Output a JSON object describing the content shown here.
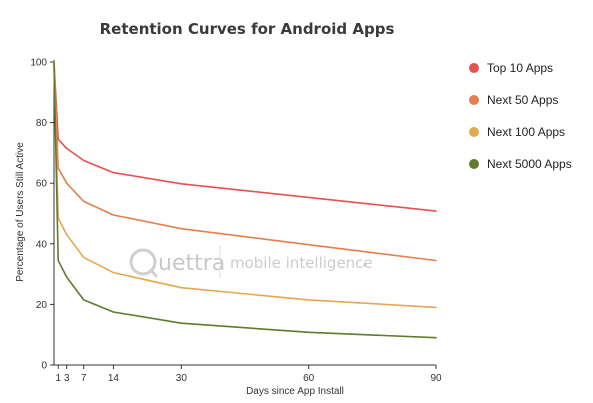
{
  "chart_data": {
    "type": "line",
    "title": "Retention Curves for Android Apps",
    "xlabel": "Days since App Install",
    "ylabel": "Percentage of Users Still Active",
    "xlim": [
      0,
      90
    ],
    "ylim": [
      0,
      100
    ],
    "xticks": [
      1,
      3,
      7,
      14,
      30,
      60,
      90
    ],
    "yticks": [
      0,
      20,
      40,
      60,
      80,
      100
    ],
    "grid": false,
    "legend_position": "right",
    "x": [
      0,
      1,
      3,
      7,
      14,
      30,
      60,
      90
    ],
    "series": [
      {
        "name": "Top 10 Apps",
        "color": "#e8504f",
        "values": [
          100,
          74.5,
          71.5,
          67.5,
          63.5,
          59.8,
          55.3,
          50.8
        ]
      },
      {
        "name": "Next 50 Apps",
        "color": "#e5804c",
        "values": [
          100,
          65,
          60,
          54,
          49.5,
          45,
          39.7,
          34.5
        ]
      },
      {
        "name": "Next 100 Apps",
        "color": "#e4a84e",
        "values": [
          100,
          48.5,
          43,
          35.5,
          30.5,
          25.5,
          21.5,
          19
        ]
      },
      {
        "name": "Next 5000 Apps",
        "color": "#617a2c",
        "values": [
          100,
          34.5,
          29,
          21.5,
          17.5,
          13.8,
          10.8,
          9
        ]
      }
    ]
  },
  "watermark": {
    "brand": "uettra",
    "tagline": "mobile intelligence"
  }
}
